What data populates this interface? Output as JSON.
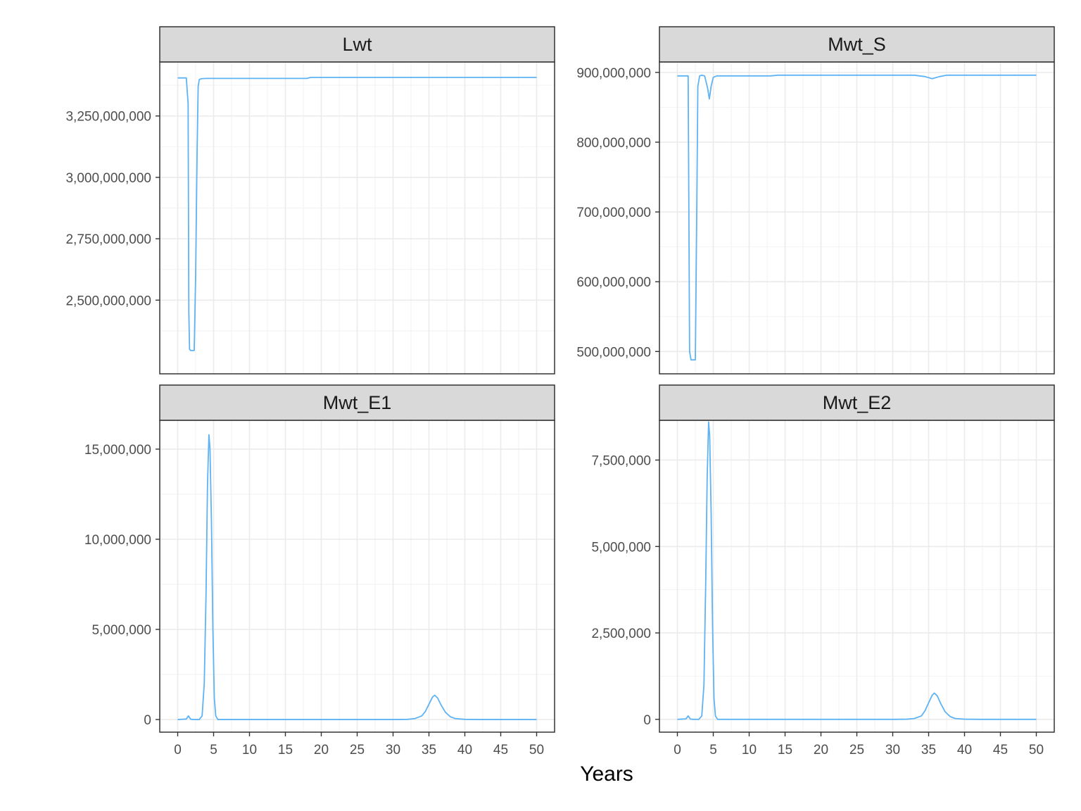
{
  "chart_data": {
    "type": "line",
    "xlabel": "Years",
    "xlim": [
      -2.5,
      52.5
    ],
    "x_ticks": [
      0,
      5,
      10,
      15,
      20,
      25,
      30,
      35,
      40,
      45,
      50
    ],
    "x_tick_labels": [
      "0",
      "5",
      "10",
      "15",
      "20",
      "25",
      "30",
      "35",
      "40",
      "45",
      "50"
    ],
    "line_color": "#5eb3f5",
    "theme": "bw",
    "grid": true,
    "panels": [
      {
        "title": "Lwt",
        "ylim": [
          2200000000,
          3470000000
        ],
        "y_ticks": [
          2500000000,
          2750000000,
          3000000000,
          3250000000
        ],
        "y_tick_labels": [
          "2,500,000,000",
          "2,750,000,000",
          "3,000,000,000",
          "3,250,000,000"
        ],
        "series": [
          {
            "x": [
              0,
              1.2,
              1.45,
              1.55,
              1.65,
              1.8,
              2.0,
              2.3,
              2.5,
              2.7,
              2.85,
              3.0,
              3.3,
              4,
              18,
              18.5,
              50
            ],
            "y": [
              3405000000,
              3405000000,
              3300000000,
              2450000000,
              2300000000,
              2295000000,
              2295000000,
              2295000000,
              2600000000,
              3100000000,
              3370000000,
              3398000000,
              3402000000,
              3403000000,
              3403000000,
              3407000000,
              3407000000
            ]
          }
        ]
      },
      {
        "title": "Mwt_S",
        "ylim": [
          468000000,
          915000000
        ],
        "y_ticks": [
          500000000,
          600000000,
          700000000,
          800000000,
          900000000
        ],
        "y_tick_labels": [
          "500,000,000",
          "600,000,000",
          "700,000,000",
          "800,000,000",
          "900,000,000"
        ],
        "series": [
          {
            "x": [
              0,
              1.5,
              1.6,
              1.7,
              1.9,
              2.2,
              2.5,
              2.7,
              2.85,
              3.1,
              3.4,
              3.8,
              4.2,
              4.45,
              4.7,
              5.0,
              5.5,
              6,
              13,
              14,
              33,
              34.5,
              35.5,
              36.5,
              37.5,
              50
            ],
            "y": [
              895000000,
              895000000,
              700000000,
              500000000,
              488000000,
              488000000,
              488000000,
              700000000,
              880000000,
              895000000,
              896000000,
              895000000,
              878000000,
              862000000,
              880000000,
              893000000,
              895000000,
              895000000,
              895000000,
              896000000,
              896000000,
              894000000,
              891000000,
              894000000,
              896000000,
              896000000
            ]
          }
        ]
      },
      {
        "title": "Mwt_E1",
        "ylim": [
          -700000,
          16600000
        ],
        "y_ticks": [
          0,
          5000000,
          10000000,
          15000000
        ],
        "y_tick_labels": [
          "0",
          "5,000,000",
          "10,000,000",
          "15,000,000"
        ],
        "series": [
          {
            "x": [
              0,
              1.2,
              1.5,
              1.8,
              2.2,
              3.0,
              3.4,
              3.7,
              3.95,
              4.15,
              4.35,
              4.5,
              4.7,
              4.9,
              5.1,
              5.3,
              5.6,
              6.5,
              30,
              32,
              33,
              34,
              34.5,
              35,
              35.5,
              35.8,
              36.2,
              36.7,
              37.3,
              38,
              38.7,
              40,
              42,
              50
            ],
            "y": [
              0,
              30000,
              200000,
              20000,
              0,
              0,
              200000,
              2000000,
              7000000,
              13000000,
              15800000,
              15000000,
              11000000,
              5000000,
              1200000,
              200000,
              0,
              0,
              0,
              10000,
              50000,
              200000,
              450000,
              850000,
              1250000,
              1350000,
              1200000,
              800000,
              400000,
              150000,
              50000,
              10000,
              0,
              0
            ]
          }
        ]
      },
      {
        "title": "Mwt_E2",
        "ylim": [
          -370000,
          8650000
        ],
        "y_ticks": [
          0,
          2500000,
          5000000,
          7500000
        ],
        "y_tick_labels": [
          "0",
          "2,500,000",
          "5,000,000",
          "7,500,000"
        ],
        "series": [
          {
            "x": [
              0,
              1.2,
              1.5,
              1.8,
              2.2,
              3.0,
              3.4,
              3.7,
              3.95,
              4.15,
              4.35,
              4.5,
              4.7,
              4.9,
              5.1,
              5.3,
              5.6,
              6.5,
              30,
              32,
              33,
              34,
              34.5,
              35,
              35.5,
              35.8,
              36.2,
              36.7,
              37.3,
              38,
              38.7,
              40,
              42,
              50
            ],
            "y": [
              0,
              15000,
              100000,
              10000,
              0,
              0,
              100000,
              1000000,
              4000000,
              7000000,
              8600000,
              8200000,
              6000000,
              2700000,
              600000,
              100000,
              0,
              0,
              0,
              5000,
              25000,
              100000,
              250000,
              480000,
              700000,
              760000,
              680000,
              450000,
              220000,
              80000,
              25000,
              5000,
              0,
              0
            ]
          }
        ]
      }
    ]
  }
}
